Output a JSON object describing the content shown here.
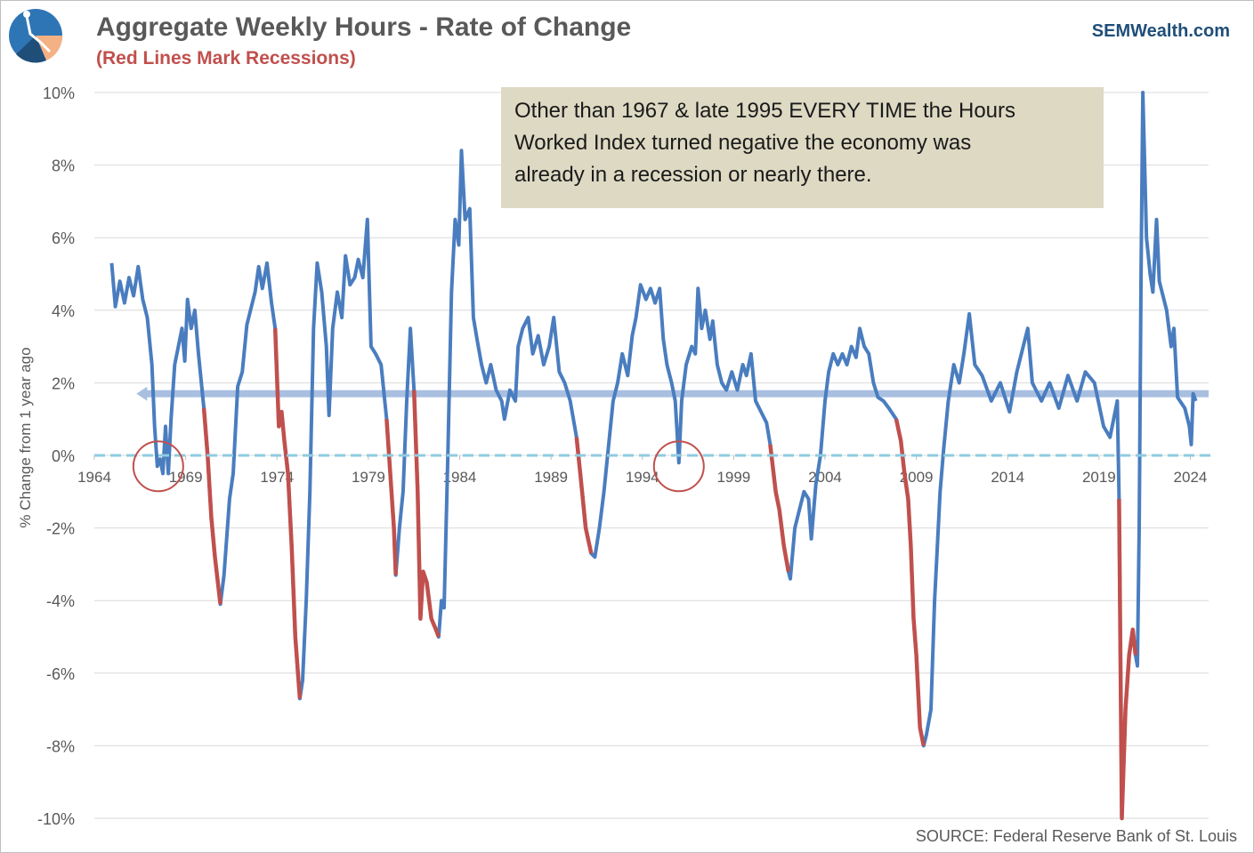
{
  "chart_data": {
    "type": "line",
    "title": "Aggregate Weekly Hours - Rate of Change",
    "subtitle": "(Red Lines Mark Recessions)",
    "brand": "SEMWealth.com",
    "source": "SOURCE:  Federal Reserve Bank of St. Louis",
    "y_label": "% Change from 1 year ago",
    "annotation": [
      "Other than 1967 & late 1995 EVERY TIME the Hours",
      "Worked Index turned negative the economy was",
      "already in a recession  or nearly there."
    ],
    "xlim": [
      1964,
      2025
    ],
    "xticks": [
      1964,
      1969,
      1974,
      1979,
      1984,
      1989,
      1994,
      1999,
      2004,
      2009,
      2014,
      2019,
      2024
    ],
    "ylim": [
      -10,
      10
    ],
    "yticks": [
      {
        "value": -10,
        "label": "-10%"
      },
      {
        "value": -8,
        "label": "-8%"
      },
      {
        "value": -6,
        "label": "-6%"
      },
      {
        "value": -4,
        "label": "-4%"
      },
      {
        "value": -2,
        "label": "-2%"
      },
      {
        "value": 0,
        "label": "0%"
      },
      {
        "value": 2,
        "label": "2%"
      },
      {
        "value": 4,
        "label": "4%"
      },
      {
        "value": 6,
        "label": "6%"
      },
      {
        "value": 8,
        "label": "8%"
      },
      {
        "value": 10,
        "label": "10%"
      }
    ],
    "grid": true,
    "color": "#4a7dbf",
    "recession_color": "#c0504d",
    "recessions": [
      [
        1970.0,
        1970.9
      ],
      [
        1973.9,
        1975.25
      ],
      [
        1980.0,
        1980.5
      ],
      [
        1981.5,
        1982.85
      ],
      [
        1990.4,
        1991.2
      ],
      [
        2001.0,
        2002.0
      ],
      [
        2007.9,
        2009.4
      ],
      [
        2020.1,
        2021.0
      ]
    ],
    "reference_line": {
      "value": 1.7,
      "x_start": 1966.5,
      "color": "#a9bfe0"
    },
    "highlights": [
      {
        "x": 1967.5,
        "y": -0.3
      },
      {
        "x": 1996.0,
        "y": -0.3
      }
    ],
    "x": [
      1964.95,
      1965.15,
      1965.4,
      1965.65,
      1965.9,
      1966.15,
      1966.4,
      1966.65,
      1966.9,
      1967.15,
      1967.3,
      1967.45,
      1967.6,
      1967.75,
      1967.9,
      1968.05,
      1968.2,
      1968.4,
      1968.6,
      1968.8,
      1968.95,
      1969.1,
      1969.3,
      1969.5,
      1969.7,
      1970.0,
      1970.2,
      1970.4,
      1970.6,
      1970.9,
      1971.1,
      1971.4,
      1971.6,
      1971.85,
      1972.1,
      1972.35,
      1972.6,
      1972.8,
      1973.0,
      1973.2,
      1973.45,
      1973.7,
      1973.9,
      1974.1,
      1974.25,
      1974.4,
      1974.6,
      1974.8,
      1975.0,
      1975.25,
      1975.4,
      1975.6,
      1975.8,
      1976.0,
      1976.2,
      1976.45,
      1976.7,
      1976.85,
      1977.05,
      1977.3,
      1977.55,
      1977.75,
      1978.0,
      1978.25,
      1978.45,
      1978.7,
      1978.95,
      1979.15,
      1979.4,
      1979.7,
      1980.0,
      1980.2,
      1980.4,
      1980.5,
      1980.7,
      1980.9,
      1981.1,
      1981.3,
      1981.5,
      1981.7,
      1981.85,
      1982.0,
      1982.2,
      1982.45,
      1982.7,
      1982.85,
      1983.0,
      1983.15,
      1983.35,
      1983.55,
      1983.75,
      1983.95,
      1984.1,
      1984.3,
      1984.55,
      1984.75,
      1984.95,
      1985.2,
      1985.45,
      1985.7,
      1986.0,
      1986.3,
      1986.45,
      1986.75,
      1987.05,
      1987.2,
      1987.45,
      1987.75,
      1988.0,
      1988.3,
      1988.6,
      1988.9,
      1989.15,
      1989.45,
      1989.75,
      1990.05,
      1990.4,
      1990.6,
      1990.9,
      1991.2,
      1991.4,
      1991.65,
      1991.9,
      1992.1,
      1992.4,
      1992.65,
      1992.9,
      1993.2,
      1993.45,
      1993.65,
      1993.9,
      1994.2,
      1994.45,
      1994.7,
      1994.95,
      1995.15,
      1995.35,
      1995.6,
      1995.8,
      1996.0,
      1996.15,
      1996.4,
      1996.7,
      1996.9,
      1997.05,
      1997.25,
      1997.45,
      1997.7,
      1997.85,
      1998.1,
      1998.35,
      1998.6,
      1998.9,
      1999.2,
      1999.5,
      1999.7,
      1999.95,
      2000.2,
      2000.5,
      2000.8,
      2001.0,
      2001.3,
      2001.5,
      2001.75,
      2002.0,
      2002.1,
      2002.35,
      2002.6,
      2002.85,
      2003.1,
      2003.25,
      2003.5,
      2003.75,
      2004.0,
      2004.2,
      2004.45,
      2004.7,
      2004.95,
      2005.2,
      2005.45,
      2005.7,
      2005.9,
      2006.15,
      2006.4,
      2006.65,
      2006.9,
      2007.2,
      2007.5,
      2007.9,
      2008.15,
      2008.35,
      2008.55,
      2008.7,
      2008.85,
      2009.0,
      2009.2,
      2009.4,
      2009.55,
      2009.8,
      2010.0,
      2010.1,
      2010.3,
      2010.5,
      2010.75,
      2011.05,
      2011.35,
      2011.6,
      2011.9,
      2012.2,
      2012.6,
      2013.1,
      2013.6,
      2014.1,
      2014.5,
      2015.1,
      2015.35,
      2015.85,
      2016.3,
      2016.8,
      2017.3,
      2017.8,
      2018.25,
      2018.75,
      2019.25,
      2019.6,
      2020.0,
      2020.1,
      2020.25,
      2020.45,
      2020.65,
      2020.85,
      2021.0,
      2021.1,
      2021.2,
      2021.3,
      2021.4,
      2021.6,
      2021.8,
      2021.95,
      2022.15,
      2022.3,
      2022.7,
      2022.95,
      2023.1,
      2023.3,
      2023.7,
      2023.95,
      2024.05,
      2024.15,
      2024.3
    ],
    "values": [
      5.3,
      4.1,
      4.8,
      4.2,
      4.9,
      4.4,
      5.2,
      4.3,
      3.8,
      2.5,
      0.8,
      -0.3,
      -0.1,
      -0.5,
      0.8,
      -0.5,
      1.0,
      2.5,
      3.0,
      3.5,
      2.6,
      4.3,
      3.5,
      4.0,
      2.8,
      1.3,
      0.0,
      -1.7,
      -2.8,
      -4.1,
      -3.3,
      -1.2,
      -0.5,
      1.9,
      2.3,
      3.6,
      4.1,
      4.5,
      5.2,
      4.6,
      5.3,
      4.2,
      3.5,
      0.8,
      1.2,
      0.4,
      -0.5,
      -2.5,
      -5.0,
      -6.7,
      -6.2,
      -4.0,
      -1.0,
      3.5,
      5.3,
      4.5,
      3.0,
      1.1,
      3.5,
      4.5,
      3.8,
      5.5,
      4.7,
      4.9,
      5.4,
      4.9,
      6.5,
      3.0,
      2.8,
      2.5,
      1.0,
      -0.5,
      -2.0,
      -3.3,
      -2.0,
      -1.0,
      1.5,
      3.5,
      1.8,
      -1.0,
      -4.5,
      -3.2,
      -3.5,
      -4.5,
      -4.8,
      -5.0,
      -4.0,
      -4.2,
      0.0,
      4.5,
      6.5,
      5.8,
      8.4,
      6.5,
      6.8,
      3.8,
      3.2,
      2.5,
      2.0,
      2.5,
      1.8,
      1.5,
      1.0,
      1.8,
      1.5,
      3.0,
      3.5,
      3.8,
      2.8,
      3.3,
      2.5,
      3.0,
      3.8,
      2.3,
      2.0,
      1.5,
      0.5,
      -0.5,
      -2.0,
      -2.7,
      -2.8,
      -2.0,
      -1.0,
      0.0,
      1.5,
      2.0,
      2.8,
      2.2,
      3.3,
      3.8,
      4.7,
      4.3,
      4.6,
      4.2,
      4.6,
      3.2,
      2.5,
      2.0,
      1.5,
      -0.2,
      1.5,
      2.5,
      3.0,
      2.8,
      4.6,
      3.5,
      4.0,
      3.2,
      3.7,
      2.5,
      2.0,
      1.8,
      2.3,
      1.8,
      2.5,
      2.2,
      2.8,
      1.5,
      1.2,
      0.9,
      0.3,
      -1.0,
      -1.5,
      -2.5,
      -3.2,
      -3.4,
      -2.0,
      -1.5,
      -1.0,
      -1.2,
      -2.3,
      -0.8,
      0.0,
      1.5,
      2.3,
      2.8,
      2.5,
      2.8,
      2.5,
      3.0,
      2.7,
      3.5,
      3.0,
      2.8,
      2.0,
      1.6,
      1.5,
      1.3,
      1.0,
      0.4,
      -0.5,
      -1.2,
      -2.5,
      -4.5,
      -5.5,
      -7.5,
      -8.0,
      -7.7,
      -7.0,
      -4.0,
      -3.0,
      -1.0,
      0.2,
      1.5,
      2.5,
      2.0,
      2.8,
      3.9,
      2.5,
      2.2,
      1.5,
      2.0,
      1.2,
      2.3,
      3.5,
      2.0,
      1.5,
      2.0,
      1.3,
      2.2,
      1.5,
      2.3,
      2.0,
      0.8,
      0.5,
      1.5,
      -1.2,
      -10.0,
      -7.0,
      -5.5,
      -4.8,
      -5.5,
      -5.8,
      -2.0,
      5.0,
      10.0,
      6.0,
      5.0,
      4.5,
      6.5,
      4.8,
      4.0,
      3.0,
      3.5,
      1.6,
      1.3,
      0.8,
      0.3,
      1.7,
      1.5
    ]
  }
}
